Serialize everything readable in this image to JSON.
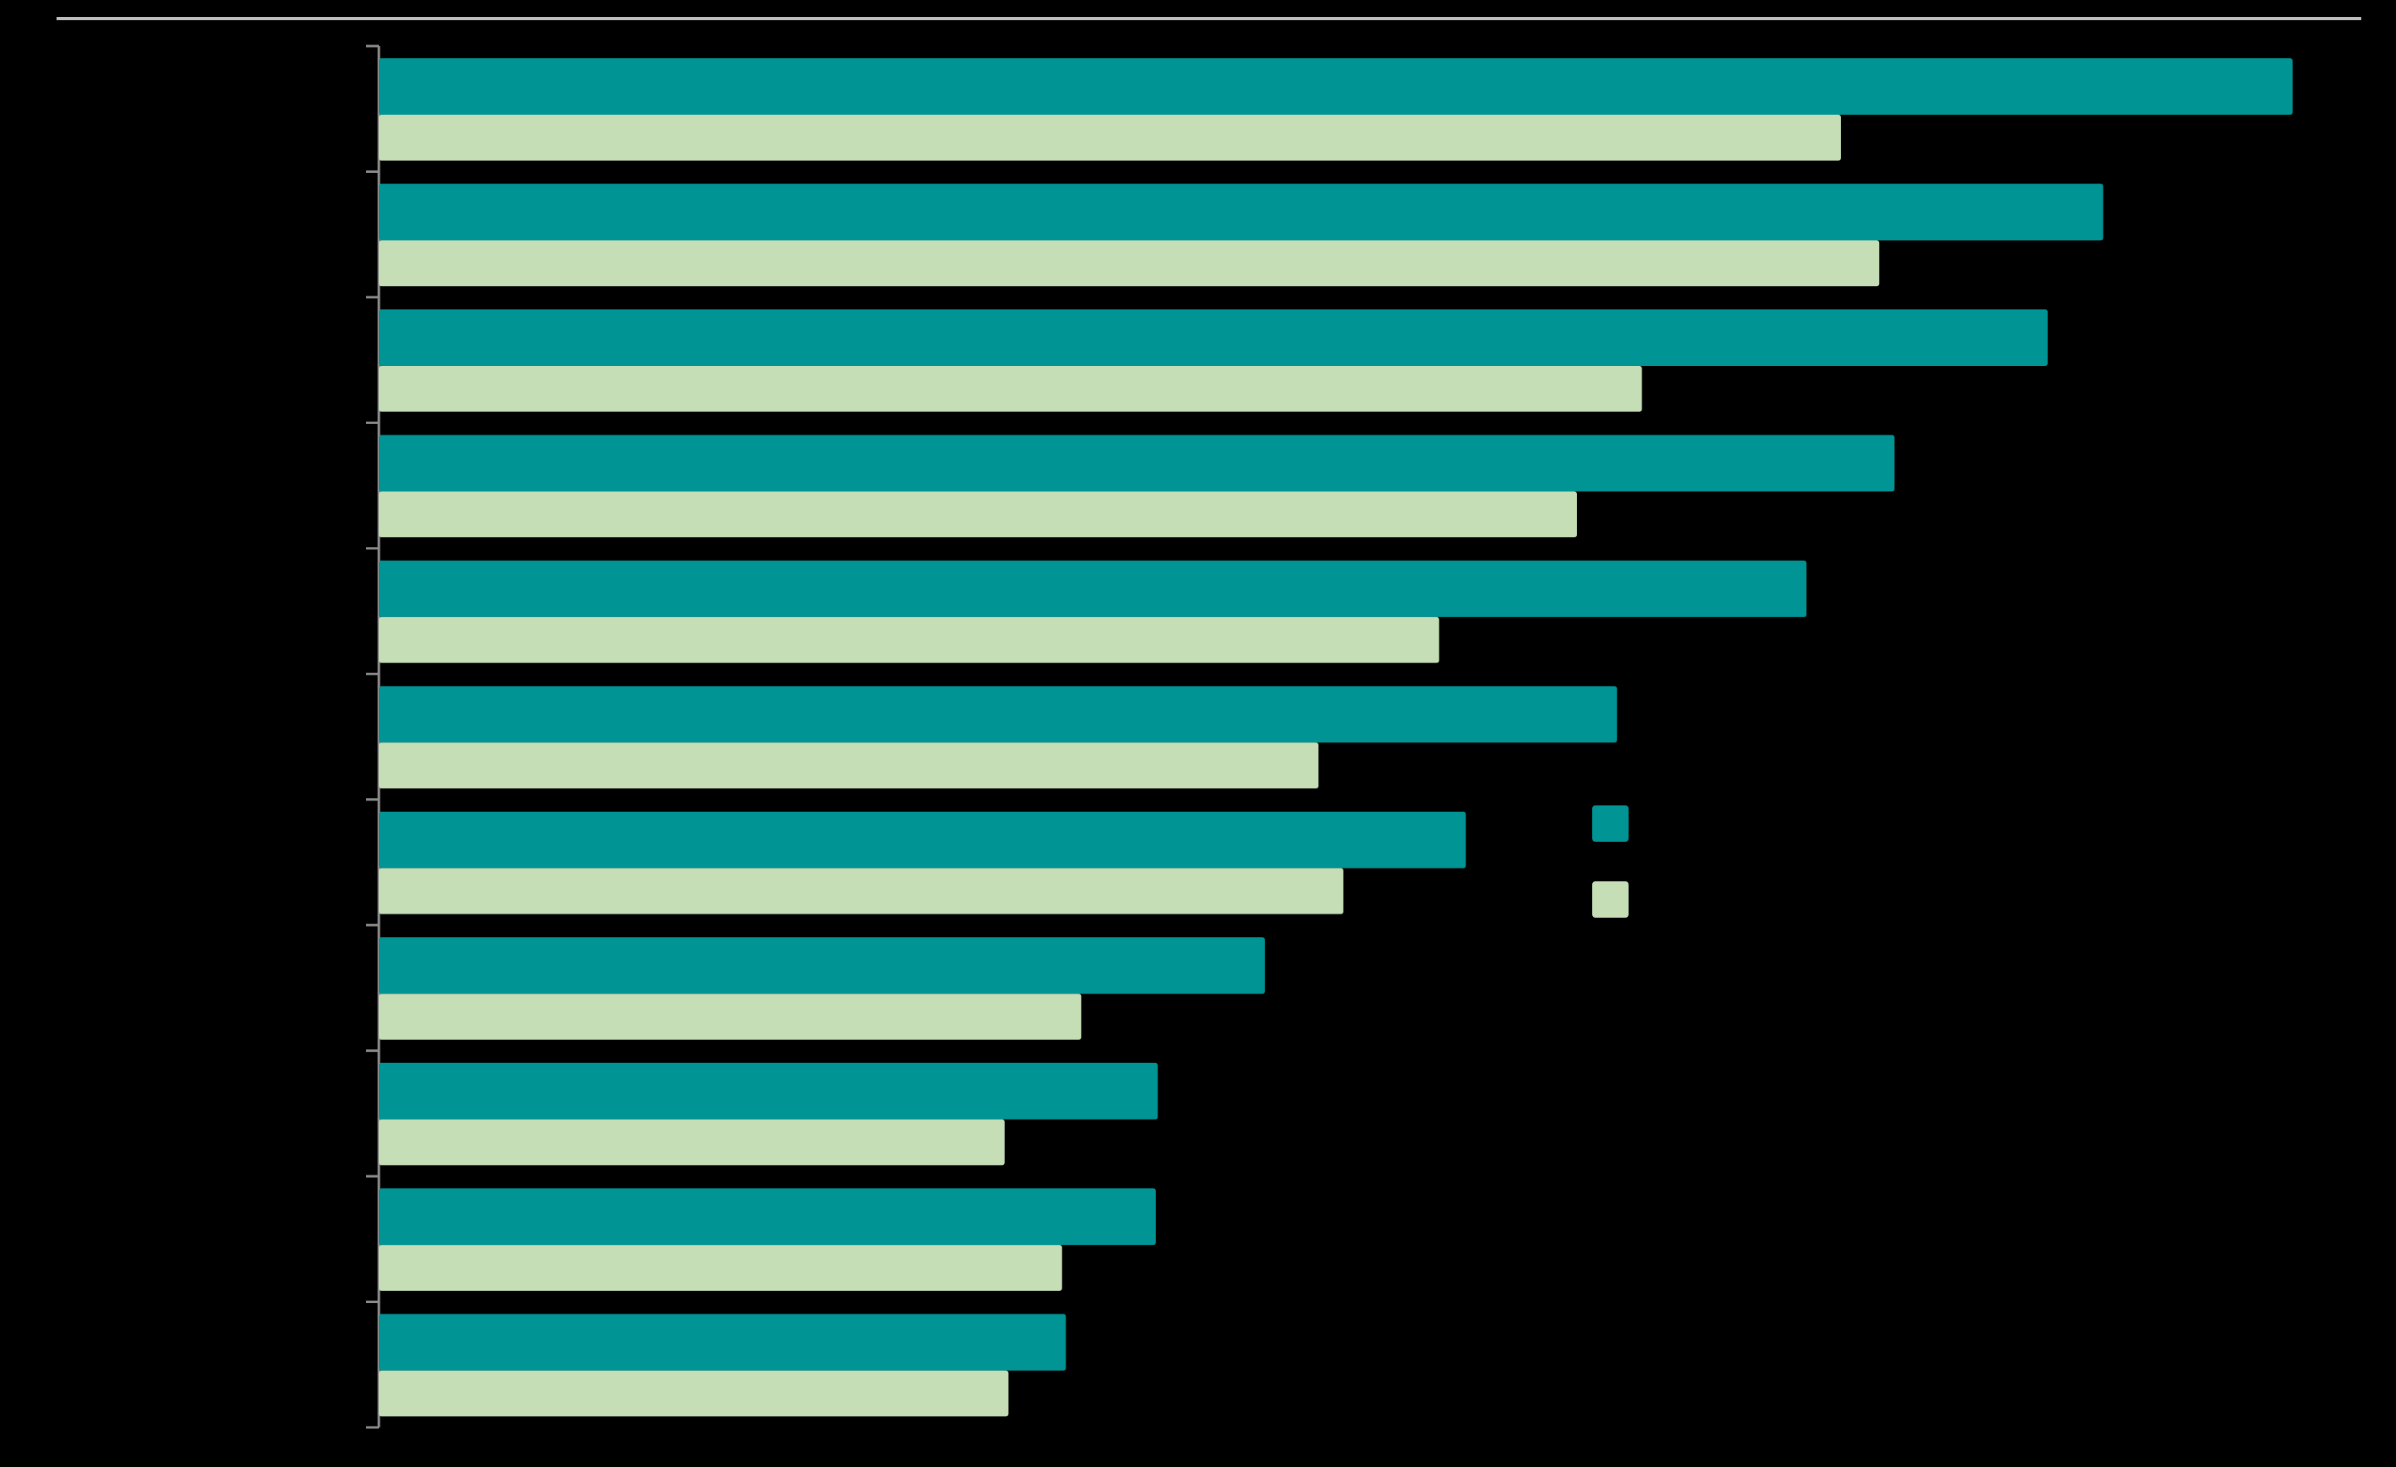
{
  "chart_data": {
    "type": "barh",
    "categories": [
      null,
      null,
      null,
      null,
      null,
      null,
      null,
      null,
      null,
      null,
      null
    ],
    "series": [
      {
        "color": "#009494",
        "values": [
          100,
          90.1,
          87.2,
          79.2,
          74.6,
          64.7,
          56.8,
          46.3,
          40.7,
          40.6,
          35.9
        ]
      },
      {
        "color": "#c5deb5",
        "values": [
          76.4,
          78.4,
          66.0,
          62.6,
          55.4,
          49.1,
          50.4,
          36.7,
          32.7,
          35.7,
          32.9
        ]
      }
    ],
    "xlim": [
      0,
      100
    ]
  }
}
